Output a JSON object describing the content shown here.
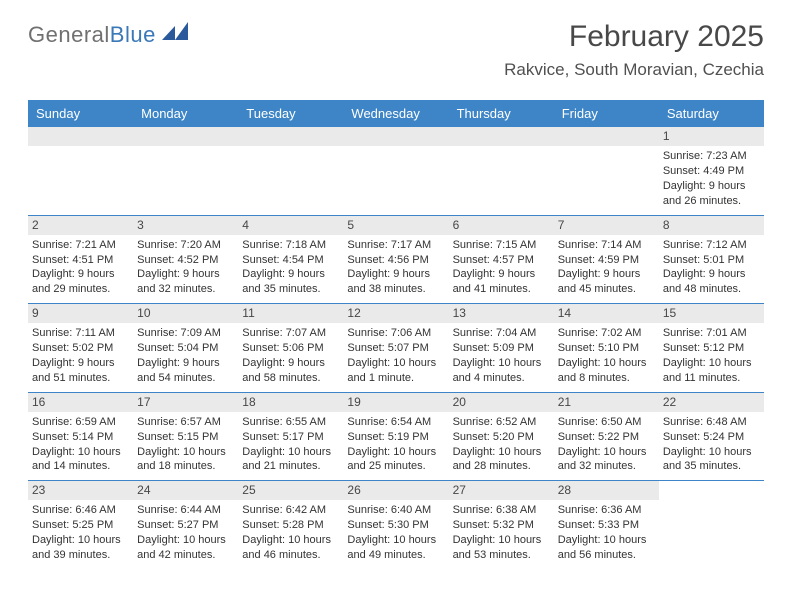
{
  "brand": {
    "word1": "General",
    "word2": "Blue",
    "mark_color": "#2a5a9c"
  },
  "header": {
    "title": "February 2025",
    "subtitle": "Rakvice, South Moravian, Czechia"
  },
  "colors": {
    "header_bar": "#3d85c6",
    "header_text": "#ffffff",
    "daynum_bg": "#eaeaea",
    "grid_line": "#3d85c6",
    "background": "#ffffff",
    "text": "#333333",
    "title_text": "#484848"
  },
  "weekdays": [
    "Sunday",
    "Monday",
    "Tuesday",
    "Wednesday",
    "Thursday",
    "Friday",
    "Saturday"
  ],
  "weeks": [
    [
      {
        "empty": true
      },
      {
        "empty": true
      },
      {
        "empty": true
      },
      {
        "empty": true
      },
      {
        "empty": true
      },
      {
        "empty": true
      },
      {
        "num": "1",
        "sunrise": "Sunrise: 7:23 AM",
        "sunset": "Sunset: 4:49 PM",
        "daylight": "Daylight: 9 hours and 26 minutes."
      }
    ],
    [
      {
        "num": "2",
        "sunrise": "Sunrise: 7:21 AM",
        "sunset": "Sunset: 4:51 PM",
        "daylight": "Daylight: 9 hours and 29 minutes."
      },
      {
        "num": "3",
        "sunrise": "Sunrise: 7:20 AM",
        "sunset": "Sunset: 4:52 PM",
        "daylight": "Daylight: 9 hours and 32 minutes."
      },
      {
        "num": "4",
        "sunrise": "Sunrise: 7:18 AM",
        "sunset": "Sunset: 4:54 PM",
        "daylight": "Daylight: 9 hours and 35 minutes."
      },
      {
        "num": "5",
        "sunrise": "Sunrise: 7:17 AM",
        "sunset": "Sunset: 4:56 PM",
        "daylight": "Daylight: 9 hours and 38 minutes."
      },
      {
        "num": "6",
        "sunrise": "Sunrise: 7:15 AM",
        "sunset": "Sunset: 4:57 PM",
        "daylight": "Daylight: 9 hours and 41 minutes."
      },
      {
        "num": "7",
        "sunrise": "Sunrise: 7:14 AM",
        "sunset": "Sunset: 4:59 PM",
        "daylight": "Daylight: 9 hours and 45 minutes."
      },
      {
        "num": "8",
        "sunrise": "Sunrise: 7:12 AM",
        "sunset": "Sunset: 5:01 PM",
        "daylight": "Daylight: 9 hours and 48 minutes."
      }
    ],
    [
      {
        "num": "9",
        "sunrise": "Sunrise: 7:11 AM",
        "sunset": "Sunset: 5:02 PM",
        "daylight": "Daylight: 9 hours and 51 minutes."
      },
      {
        "num": "10",
        "sunrise": "Sunrise: 7:09 AM",
        "sunset": "Sunset: 5:04 PM",
        "daylight": "Daylight: 9 hours and 54 minutes."
      },
      {
        "num": "11",
        "sunrise": "Sunrise: 7:07 AM",
        "sunset": "Sunset: 5:06 PM",
        "daylight": "Daylight: 9 hours and 58 minutes."
      },
      {
        "num": "12",
        "sunrise": "Sunrise: 7:06 AM",
        "sunset": "Sunset: 5:07 PM",
        "daylight": "Daylight: 10 hours and 1 minute."
      },
      {
        "num": "13",
        "sunrise": "Sunrise: 7:04 AM",
        "sunset": "Sunset: 5:09 PM",
        "daylight": "Daylight: 10 hours and 4 minutes."
      },
      {
        "num": "14",
        "sunrise": "Sunrise: 7:02 AM",
        "sunset": "Sunset: 5:10 PM",
        "daylight": "Daylight: 10 hours and 8 minutes."
      },
      {
        "num": "15",
        "sunrise": "Sunrise: 7:01 AM",
        "sunset": "Sunset: 5:12 PM",
        "daylight": "Daylight: 10 hours and 11 minutes."
      }
    ],
    [
      {
        "num": "16",
        "sunrise": "Sunrise: 6:59 AM",
        "sunset": "Sunset: 5:14 PM",
        "daylight": "Daylight: 10 hours and 14 minutes."
      },
      {
        "num": "17",
        "sunrise": "Sunrise: 6:57 AM",
        "sunset": "Sunset: 5:15 PM",
        "daylight": "Daylight: 10 hours and 18 minutes."
      },
      {
        "num": "18",
        "sunrise": "Sunrise: 6:55 AM",
        "sunset": "Sunset: 5:17 PM",
        "daylight": "Daylight: 10 hours and 21 minutes."
      },
      {
        "num": "19",
        "sunrise": "Sunrise: 6:54 AM",
        "sunset": "Sunset: 5:19 PM",
        "daylight": "Daylight: 10 hours and 25 minutes."
      },
      {
        "num": "20",
        "sunrise": "Sunrise: 6:52 AM",
        "sunset": "Sunset: 5:20 PM",
        "daylight": "Daylight: 10 hours and 28 minutes."
      },
      {
        "num": "21",
        "sunrise": "Sunrise: 6:50 AM",
        "sunset": "Sunset: 5:22 PM",
        "daylight": "Daylight: 10 hours and 32 minutes."
      },
      {
        "num": "22",
        "sunrise": "Sunrise: 6:48 AM",
        "sunset": "Sunset: 5:24 PM",
        "daylight": "Daylight: 10 hours and 35 minutes."
      }
    ],
    [
      {
        "num": "23",
        "sunrise": "Sunrise: 6:46 AM",
        "sunset": "Sunset: 5:25 PM",
        "daylight": "Daylight: 10 hours and 39 minutes."
      },
      {
        "num": "24",
        "sunrise": "Sunrise: 6:44 AM",
        "sunset": "Sunset: 5:27 PM",
        "daylight": "Daylight: 10 hours and 42 minutes."
      },
      {
        "num": "25",
        "sunrise": "Sunrise: 6:42 AM",
        "sunset": "Sunset: 5:28 PM",
        "daylight": "Daylight: 10 hours and 46 minutes."
      },
      {
        "num": "26",
        "sunrise": "Sunrise: 6:40 AM",
        "sunset": "Sunset: 5:30 PM",
        "daylight": "Daylight: 10 hours and 49 minutes."
      },
      {
        "num": "27",
        "sunrise": "Sunrise: 6:38 AM",
        "sunset": "Sunset: 5:32 PM",
        "daylight": "Daylight: 10 hours and 53 minutes."
      },
      {
        "num": "28",
        "sunrise": "Sunrise: 6:36 AM",
        "sunset": "Sunset: 5:33 PM",
        "daylight": "Daylight: 10 hours and 56 minutes."
      },
      {
        "empty": true
      }
    ]
  ]
}
